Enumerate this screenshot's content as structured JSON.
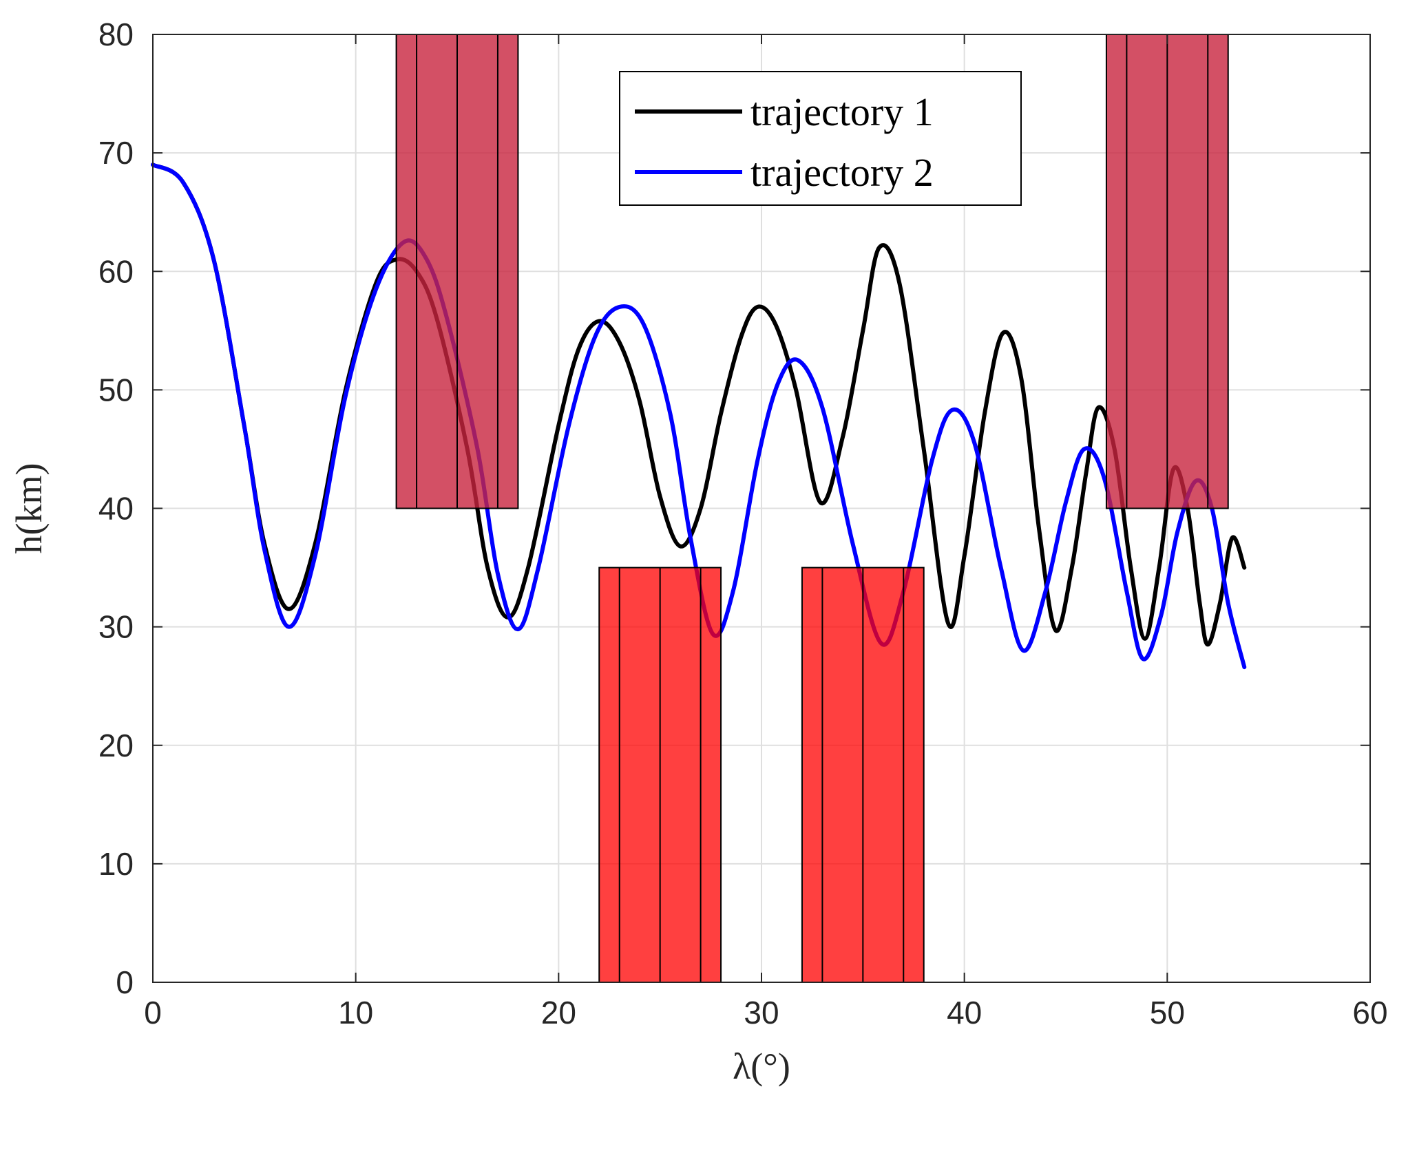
{
  "chart_data": {
    "type": "line",
    "title": "",
    "xlabel": "λ(°)",
    "ylabel": "h(km)",
    "xlim": [
      0,
      60
    ],
    "ylim": [
      0,
      80
    ],
    "xticks": [
      0,
      10,
      20,
      30,
      40,
      50,
      60
    ],
    "yticks": [
      0,
      10,
      20,
      30,
      40,
      50,
      60,
      70,
      80
    ],
    "grid": true,
    "legend_position": "top-center",
    "series": [
      {
        "name": "trajectory 1",
        "color": "#000000",
        "points": [
          [
            0,
            69
          ],
          [
            1.5,
            67.5
          ],
          [
            3,
            61
          ],
          [
            4.5,
            47
          ],
          [
            5.5,
            37
          ],
          [
            6.7,
            31.5
          ],
          [
            8,
            37
          ],
          [
            9.5,
            50
          ],
          [
            11,
            59
          ],
          [
            12,
            61
          ],
          [
            13,
            60
          ],
          [
            14,
            56
          ],
          [
            15.5,
            45
          ],
          [
            16.5,
            35
          ],
          [
            17.5,
            30.8
          ],
          [
            18.5,
            35
          ],
          [
            20,
            47
          ],
          [
            21,
            53.5
          ],
          [
            22,
            55.8
          ],
          [
            23,
            54
          ],
          [
            24,
            49
          ],
          [
            25,
            41
          ],
          [
            26,
            36.8
          ],
          [
            27,
            40
          ],
          [
            28,
            48
          ],
          [
            29,
            54.5
          ],
          [
            29.8,
            57
          ],
          [
            30.7,
            55.5
          ],
          [
            31.7,
            50
          ],
          [
            32.9,
            40.5
          ],
          [
            34,
            46
          ],
          [
            35,
            55
          ],
          [
            35.8,
            62
          ],
          [
            36.8,
            59
          ],
          [
            38,
            45
          ],
          [
            39.2,
            30.3
          ],
          [
            40,
            36
          ],
          [
            41,
            48
          ],
          [
            41.9,
            54.8
          ],
          [
            42.8,
            51
          ],
          [
            43.7,
            38
          ],
          [
            44.5,
            29.7
          ],
          [
            45.3,
            35
          ],
          [
            46,
            43
          ],
          [
            46.6,
            48.5
          ],
          [
            47.4,
            45
          ],
          [
            48.2,
            35
          ],
          [
            48.9,
            29
          ],
          [
            49.6,
            35
          ],
          [
            50.3,
            43.3
          ],
          [
            51,
            40
          ],
          [
            51.6,
            32
          ],
          [
            52,
            28.5
          ],
          [
            52.6,
            32
          ],
          [
            53.2,
            37.5
          ],
          [
            53.8,
            35
          ]
        ]
      },
      {
        "name": "trajectory 2",
        "color": "#0000ff",
        "points": [
          [
            0,
            69
          ],
          [
            1.5,
            67.5
          ],
          [
            3,
            61
          ],
          [
            4.5,
            47
          ],
          [
            5.5,
            36.5
          ],
          [
            6.7,
            30
          ],
          [
            8,
            36
          ],
          [
            9.5,
            49.5
          ],
          [
            11,
            58.5
          ],
          [
            12.4,
            62.5
          ],
          [
            13.5,
            61
          ],
          [
            14.5,
            56
          ],
          [
            16,
            45
          ],
          [
            17,
            34.5
          ],
          [
            18,
            29.8
          ],
          [
            19,
            35
          ],
          [
            20.5,
            47
          ],
          [
            21.8,
            54.5
          ],
          [
            23,
            57
          ],
          [
            24.2,
            55.5
          ],
          [
            25.5,
            48
          ],
          [
            26.5,
            37.5
          ],
          [
            27.6,
            29.4
          ],
          [
            28.6,
            33
          ],
          [
            29.8,
            44
          ],
          [
            30.8,
            50.5
          ],
          [
            31.8,
            52.5
          ],
          [
            33,
            48.5
          ],
          [
            34.5,
            37
          ],
          [
            35.9,
            28.6
          ],
          [
            37,
            33
          ],
          [
            38.4,
            44
          ],
          [
            39.4,
            48.3
          ],
          [
            40.5,
            45.5
          ],
          [
            41.8,
            35
          ],
          [
            42.9,
            28
          ],
          [
            44,
            33
          ],
          [
            45,
            40.5
          ],
          [
            45.9,
            45
          ],
          [
            46.9,
            42.5
          ],
          [
            48,
            33
          ],
          [
            48.8,
            27.3
          ],
          [
            49.7,
            31
          ],
          [
            50.5,
            38
          ],
          [
            51.4,
            42.3
          ],
          [
            52.2,
            40
          ],
          [
            53,
            32
          ],
          [
            53.8,
            26.6
          ]
        ]
      }
    ],
    "regions": [
      {
        "name": "upper-zone-1",
        "x0": 12,
        "x1": 18,
        "y0": 40,
        "y1": 80,
        "dividers": [
          13,
          15,
          17
        ],
        "color": "#c8243e",
        "opacity": 0.8
      },
      {
        "name": "upper-zone-2",
        "x0": 47,
        "x1": 53,
        "y0": 40,
        "y1": 80,
        "dividers": [
          48,
          50,
          52
        ],
        "color": "#c8243e",
        "opacity": 0.8
      },
      {
        "name": "lower-zone-1",
        "x0": 22,
        "x1": 28,
        "y0": 0,
        "y1": 35,
        "dividers": [
          23,
          25,
          27
        ],
        "color": "#ff0000",
        "opacity": 0.75
      },
      {
        "name": "lower-zone-2",
        "x0": 32,
        "x1": 38,
        "y0": 0,
        "y1": 35,
        "dividers": [
          33,
          35,
          37
        ],
        "color": "#ff0000",
        "opacity": 0.75
      }
    ]
  }
}
